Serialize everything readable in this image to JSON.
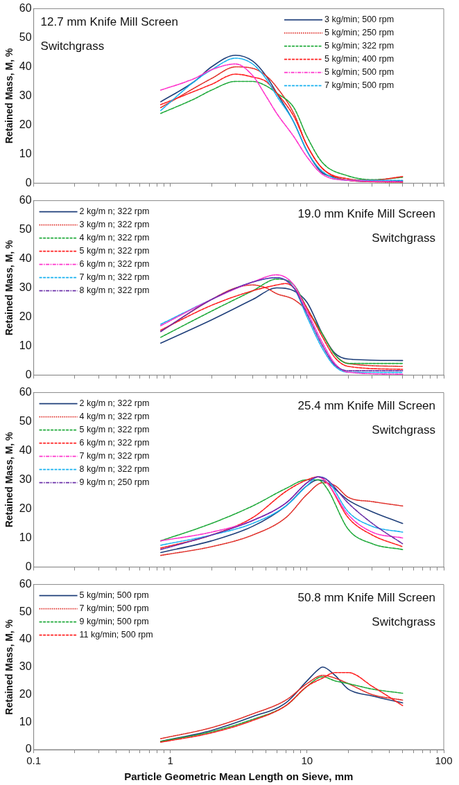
{
  "chart_data": [
    {
      "type": "line",
      "title": "12.7 mm Knife Mill Screen",
      "annotations": [
        "Switchgrass"
      ],
      "ylabel": "Retained Mass, M, %",
      "log": "x",
      "legend": "top right",
      "grid": false,
      "marker": "none",
      "tick_labels": "y",
      "xlim": [
        0.1,
        100
      ],
      "xticks": [
        0.1,
        {
          "value": 0.2,
          "label": null
        },
        {
          "value": 0.3,
          "label": null
        },
        {
          "value": 0.4,
          "label": null
        },
        {
          "value": 0.5,
          "label": null
        },
        {
          "value": 0.6,
          "label": null
        },
        {
          "value": 0.7,
          "label": null
        },
        {
          "value": 0.8,
          "label": null
        },
        {
          "value": 0.9,
          "label": null
        },
        1,
        {
          "value": 2,
          "label": null
        },
        {
          "value": 3,
          "label": null
        },
        {
          "value": 4,
          "label": null
        },
        {
          "value": 5,
          "label": null
        },
        {
          "value": 6,
          "label": null
        },
        {
          "value": 7,
          "label": null
        },
        {
          "value": 8,
          "label": null
        },
        {
          "value": 9,
          "label": null
        },
        10,
        {
          "value": 20,
          "label": null
        },
        {
          "value": 30,
          "label": null
        },
        {
          "value": 40,
          "label": null
        },
        {
          "value": 50,
          "label": null
        },
        {
          "value": 60,
          "label": null
        },
        {
          "value": 70,
          "label": null
        },
        {
          "value": 80,
          "label": null
        },
        {
          "value": 90,
          "label": null
        },
        100
      ],
      "ylim": [
        0,
        60
      ],
      "yticks": [
        0,
        10,
        20,
        30,
        40,
        50,
        60
      ],
      "series": [
        {
          "name": "3 kg/min; 500 rpm",
          "color": "#1f3f7a",
          "line_style": "solid",
          "x": [
            0.85,
            1.5,
            2,
            3,
            4,
            5,
            6,
            8,
            10,
            12.6,
            16,
            20,
            30,
            50
          ],
          "values": [
            28,
            35,
            40,
            44,
            42,
            37,
            31,
            21,
            11,
            4,
            2,
            1,
            0.5,
            0.7
          ]
        },
        {
          "name": "5 kg/min; 250 rpm",
          "color": "#e0302a",
          "line_style": "dotted",
          "x": [
            0.85,
            2,
            3,
            4,
            5,
            6,
            8,
            10,
            13,
            20,
            50
          ],
          "values": [
            26,
            36,
            40,
            39.5,
            37,
            33,
            24,
            13,
            5,
            1,
            0.3
          ]
        },
        {
          "name": "5 kg/min; 322 rpm",
          "color": "#1faa3a",
          "line_style": "dashed",
          "x": [
            0.85,
            1.5,
            2,
            3,
            4,
            5,
            6,
            8,
            10,
            13,
            20,
            30,
            50
          ],
          "values": [
            24,
            29,
            32,
            35,
            35,
            33.5,
            31,
            26,
            16,
            7,
            2.5,
            1.2,
            2
          ]
        },
        {
          "name": "5 kg/min; 400 rpm",
          "color": "#ff2020",
          "line_style": "dashed",
          "x": [
            0.85,
            2,
            3,
            4,
            5,
            6,
            8,
            10,
            13,
            20,
            30,
            50
          ],
          "values": [
            27,
            34,
            37.5,
            36.5,
            35,
            31,
            23,
            13,
            5,
            1.5,
            1,
            2.3
          ]
        },
        {
          "name": "5 kg/min; 500 rpm",
          "color": "#ff33cc",
          "line_style": "dashdot",
          "x": [
            0.85,
            1.5,
            2,
            3,
            4,
            5,
            6,
            8,
            10,
            13,
            20,
            50
          ],
          "values": [
            32,
            36,
            39,
            41,
            37,
            30,
            24,
            16,
            9,
            3,
            1,
            0.5
          ]
        },
        {
          "name": "7 kg/min; 500 rpm",
          "color": "#1ab2f0",
          "line_style": "dashed",
          "x": [
            0.85,
            1.5,
            2,
            3,
            4,
            5,
            6,
            8,
            10,
            13,
            20,
            50
          ],
          "values": [
            25,
            35,
            39,
            43,
            41,
            36,
            30,
            21,
            11,
            4,
            1,
            1
          ]
        }
      ]
    },
    {
      "type": "line",
      "title": "19.0 mm Knife Mill Screen",
      "annotations": [
        "Switchgrass"
      ],
      "ylabel": "Retained Mass, M, %",
      "log": "x",
      "legend": "top left",
      "grid": false,
      "marker": "none",
      "tick_labels": "y",
      "xlim": [
        0.1,
        100
      ],
      "xticks": [
        0.1,
        {
          "value": 0.2,
          "label": null
        },
        {
          "value": 0.3,
          "label": null
        },
        {
          "value": 0.4,
          "label": null
        },
        {
          "value": 0.5,
          "label": null
        },
        {
          "value": 0.6,
          "label": null
        },
        {
          "value": 0.7,
          "label": null
        },
        {
          "value": 0.8,
          "label": null
        },
        {
          "value": 0.9,
          "label": null
        },
        1,
        {
          "value": 2,
          "label": null
        },
        {
          "value": 3,
          "label": null
        },
        {
          "value": 4,
          "label": null
        },
        {
          "value": 5,
          "label": null
        },
        {
          "value": 6,
          "label": null
        },
        {
          "value": 7,
          "label": null
        },
        {
          "value": 8,
          "label": null
        },
        {
          "value": 9,
          "label": null
        },
        10,
        {
          "value": 20,
          "label": null
        },
        {
          "value": 30,
          "label": null
        },
        {
          "value": 40,
          "label": null
        },
        {
          "value": 50,
          "label": null
        },
        {
          "value": 60,
          "label": null
        },
        {
          "value": 70,
          "label": null
        },
        {
          "value": 80,
          "label": null
        },
        {
          "value": 90,
          "label": null
        },
        100
      ],
      "ylim": [
        0,
        60
      ],
      "yticks": [
        0,
        10,
        20,
        30,
        40,
        50,
        60
      ],
      "series": [
        {
          "name": "2 kg/m n; 322 rpm",
          "color": "#1f3f7a",
          "line_style": "solid",
          "x": [
            0.85,
            2,
            4,
            6,
            8,
            10,
            13,
            16,
            20,
            50
          ],
          "values": [
            11,
            19,
            26,
            30,
            29,
            25,
            14,
            7.5,
            5.5,
            5
          ]
        },
        {
          "name": "3 kg/m n; 322 rpm",
          "color": "#e0302a",
          "line_style": "dotted",
          "x": [
            0.85,
            2,
            3,
            4,
            5,
            6,
            8,
            10,
            13,
            16,
            20,
            50
          ],
          "values": [
            15,
            26,
            30,
            31,
            30,
            28,
            26,
            22,
            14,
            7,
            4,
            3
          ]
        },
        {
          "name": "4 kg/m n; 322 rpm",
          "color": "#1faa3a",
          "line_style": "dashed",
          "x": [
            0.85,
            2,
            4,
            6,
            8,
            10,
            13,
            16,
            20,
            50
          ],
          "values": [
            13,
            22,
            29,
            33,
            31,
            23,
            14,
            7,
            4,
            4
          ]
        },
        {
          "name": "5 kg/m n; 322 rpm",
          "color": "#ff2020",
          "line_style": "dashed",
          "x": [
            0.85,
            2,
            4,
            6,
            7,
            8,
            10,
            13,
            16,
            20,
            50
          ],
          "values": [
            15.5,
            24,
            29,
            31,
            31.5,
            30,
            23,
            13,
            6,
            3,
            2
          ]
        },
        {
          "name": "6 kg/m n; 322 rpm",
          "color": "#ff33cc",
          "line_style": "dashdot",
          "x": [
            0.85,
            2,
            4,
            6,
            8,
            10,
            13,
            16,
            20,
            50
          ],
          "values": [
            17,
            26,
            32,
            34.5,
            31,
            22,
            11,
            4,
            1,
            0.3
          ]
        },
        {
          "name": "7 kg/m n; 322 rpm",
          "color": "#1ab2f0",
          "line_style": "dashed",
          "x": [
            0.85,
            2,
            4,
            6,
            8,
            10,
            13,
            16,
            20,
            50
          ],
          "values": [
            17.5,
            26,
            32,
            33.5,
            30,
            20,
            9,
            3,
            1,
            0.9
          ]
        },
        {
          "name": "8 kg/m n; 322 rpm",
          "color": "#6a2fa8",
          "line_style": "dashdot",
          "x": [
            0.85,
            2,
            4,
            6,
            8,
            10,
            13,
            16,
            20,
            50
          ],
          "values": [
            15,
            26,
            32,
            33.5,
            30,
            21,
            10,
            3.5,
            1.5,
            1.5
          ]
        }
      ]
    },
    {
      "type": "line",
      "title": "25.4 mm Knife Mill Screen",
      "annotations": [
        "Switchgrass"
      ],
      "ylabel": "Retained Mass, M, %",
      "log": "x",
      "legend": "top left",
      "grid": false,
      "marker": "none",
      "tick_labels": "y",
      "xlim": [
        0.1,
        100
      ],
      "xticks": [
        0.1,
        {
          "value": 0.2,
          "label": null
        },
        {
          "value": 0.3,
          "label": null
        },
        {
          "value": 0.4,
          "label": null
        },
        {
          "value": 0.5,
          "label": null
        },
        {
          "value": 0.6,
          "label": null
        },
        {
          "value": 0.7,
          "label": null
        },
        {
          "value": 0.8,
          "label": null
        },
        {
          "value": 0.9,
          "label": null
        },
        1,
        {
          "value": 2,
          "label": null
        },
        {
          "value": 3,
          "label": null
        },
        {
          "value": 4,
          "label": null
        },
        {
          "value": 5,
          "label": null
        },
        {
          "value": 6,
          "label": null
        },
        {
          "value": 7,
          "label": null
        },
        {
          "value": 8,
          "label": null
        },
        {
          "value": 9,
          "label": null
        },
        10,
        {
          "value": 20,
          "label": null
        },
        {
          "value": 30,
          "label": null
        },
        {
          "value": 40,
          "label": null
        },
        {
          "value": 50,
          "label": null
        },
        {
          "value": 60,
          "label": null
        },
        {
          "value": 70,
          "label": null
        },
        {
          "value": 80,
          "label": null
        },
        {
          "value": 90,
          "label": null
        },
        100
      ],
      "ylim": [
        0,
        60
      ],
      "yticks": [
        0,
        10,
        20,
        30,
        40,
        50,
        60
      ],
      "series": [
        {
          "name": "2 kg/m n; 322 rpm",
          "color": "#1f3f7a",
          "line_style": "solid",
          "x": [
            0.85,
            2,
            4,
            7,
            10,
            12,
            14,
            20,
            30,
            50
          ],
          "values": [
            5,
            9,
            14,
            21,
            28,
            30,
            29,
            23,
            19,
            15
          ]
        },
        {
          "name": "4 kg/m n; 322 rpm",
          "color": "#e0302a",
          "line_style": "dotted",
          "x": [
            0.85,
            2,
            4,
            7,
            10,
            13,
            16,
            20,
            30,
            50
          ],
          "values": [
            4,
            7,
            11,
            17,
            25,
            29,
            28,
            24,
            22.5,
            21
          ]
        },
        {
          "name": "5 kg/m n; 322 rpm",
          "color": "#1faa3a",
          "line_style": "dashed",
          "x": [
            0.85,
            2,
            4,
            7,
            10,
            12,
            14,
            20,
            30,
            50
          ],
          "values": [
            9,
            15,
            21,
            27,
            30,
            30,
            27,
            13,
            8,
            6
          ]
        },
        {
          "name": "6 kg/m n; 322 rpm",
          "color": "#ff2020",
          "line_style": "dashed",
          "x": [
            0.85,
            2,
            4,
            7,
            10,
            12,
            14,
            20,
            30,
            50
          ],
          "values": [
            6.5,
            11,
            17,
            26,
            30,
            31,
            29,
            17,
            11,
            7
          ]
        },
        {
          "name": "7 kg/m n; 322 rpm",
          "color": "#ff33cc",
          "line_style": "dashdot",
          "x": [
            0.85,
            2,
            4,
            7,
            10,
            12,
            14,
            20,
            30,
            50
          ],
          "values": [
            9,
            12,
            16,
            22,
            29,
            31,
            29,
            18,
            12,
            10
          ]
        },
        {
          "name": "8 kg/m n; 322 rpm",
          "color": "#1ab2f0",
          "line_style": "dashed",
          "x": [
            0.85,
            2,
            4,
            7,
            10,
            12,
            14,
            20,
            30,
            50
          ],
          "values": [
            7.5,
            11,
            15,
            21,
            28,
            31,
            30,
            19,
            14,
            12
          ]
        },
        {
          "name": "9 kg/m n; 250 rpm",
          "color": "#6a2fa8",
          "line_style": "dashdot",
          "x": [
            0.85,
            2,
            4,
            7,
            10,
            12,
            14,
            20,
            30,
            50
          ],
          "values": [
            6,
            11,
            16,
            22,
            29,
            31,
            30,
            22,
            15,
            8
          ]
        }
      ]
    },
    {
      "type": "line",
      "title": "50.8 mm Knife Mill Screen",
      "annotations": [
        "Switchgrass"
      ],
      "xlabel": "Particle Geometric Mean Length on Sieve, mm",
      "ylabel": "Retained Mass, M, %",
      "log": "x",
      "legend": "top left",
      "grid": false,
      "marker": "none",
      "xlim": [
        0.1,
        100
      ],
      "xticks": [
        0.1,
        {
          "value": 0.2,
          "label": null
        },
        {
          "value": 0.3,
          "label": null
        },
        {
          "value": 0.4,
          "label": null
        },
        {
          "value": 0.5,
          "label": null
        },
        {
          "value": 0.6,
          "label": null
        },
        {
          "value": 0.7,
          "label": null
        },
        {
          "value": 0.8,
          "label": null
        },
        {
          "value": 0.9,
          "label": null
        },
        1,
        {
          "value": 2,
          "label": null
        },
        {
          "value": 3,
          "label": null
        },
        {
          "value": 4,
          "label": null
        },
        {
          "value": 5,
          "label": null
        },
        {
          "value": 6,
          "label": null
        },
        {
          "value": 7,
          "label": null
        },
        {
          "value": 8,
          "label": null
        },
        {
          "value": 9,
          "label": null
        },
        10,
        {
          "value": 20,
          "label": null
        },
        {
          "value": 30,
          "label": null
        },
        {
          "value": 40,
          "label": null
        },
        {
          "value": 50,
          "label": null
        },
        {
          "value": 60,
          "label": null
        },
        {
          "value": 70,
          "label": null
        },
        {
          "value": 80,
          "label": null
        },
        {
          "value": 90,
          "label": null
        },
        100
      ],
      "ylim": [
        0,
        60
      ],
      "yticks": [
        0,
        10,
        20,
        30,
        40,
        50,
        60
      ],
      "series": [
        {
          "name": "5 kg/min; 500 rpm",
          "color": "#1f3f7a",
          "line_style": "solid",
          "x": [
            0.85,
            2,
            4,
            7,
            10,
            12,
            13,
            16,
            20,
            30,
            50
          ],
          "values": [
            3,
            7,
            12,
            17,
            25,
            29,
            30,
            27,
            22,
            19.5,
            17
          ]
        },
        {
          "name": "7 kg/min; 500 rpm",
          "color": "#e0302a",
          "line_style": "dotted",
          "x": [
            0.85,
            2,
            4,
            7,
            10,
            13,
            16,
            20,
            30,
            50
          ],
          "values": [
            4,
            8,
            13,
            18,
            24,
            27,
            26,
            24,
            20,
            18
          ]
        },
        {
          "name": "9 kg/min; 500 rpm",
          "color": "#1faa3a",
          "line_style": "dashed",
          "x": [
            0.85,
            2,
            4,
            7,
            10,
            13,
            16,
            20,
            30,
            50
          ],
          "values": [
            3,
            6.5,
            11,
            16,
            23,
            26.5,
            25,
            24,
            22,
            20.5
          ]
        },
        {
          "name": "11 kg/min; 500 rpm",
          "color": "#ff2020",
          "line_style": "dashed",
          "x": [
            0.85,
            2,
            4,
            7,
            10,
            13,
            16,
            20,
            30,
            50
          ],
          "values": [
            2.7,
            6.1,
            10.6,
            16,
            23,
            26,
            28,
            28,
            23,
            16
          ]
        }
      ]
    }
  ]
}
